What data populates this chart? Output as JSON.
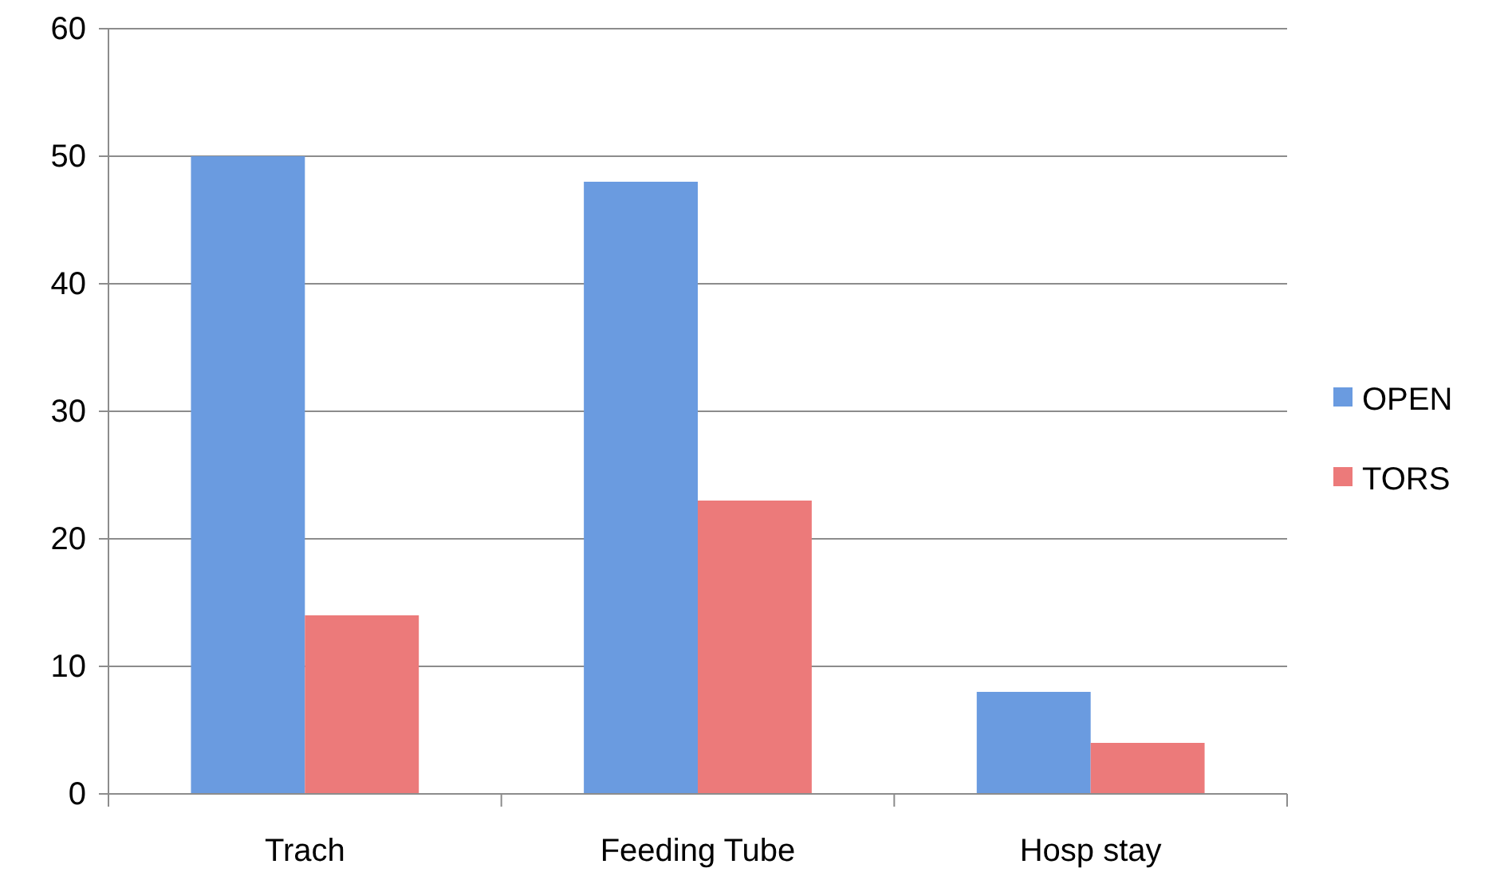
{
  "chart_data": {
    "type": "bar",
    "categories": [
      "Trach",
      "Feeding Tube",
      "Hosp stay"
    ],
    "series": [
      {
        "name": "OPEN",
        "color": "#6a9be0",
        "values": [
          50,
          48,
          8
        ]
      },
      {
        "name": "TORS",
        "color": "#ec7a7a",
        "values": [
          14,
          23,
          4
        ]
      }
    ],
    "ylim": [
      0,
      60
    ],
    "yticks": [
      0,
      10,
      20,
      30,
      40,
      50,
      60
    ],
    "grid": "y",
    "legend": "right"
  }
}
